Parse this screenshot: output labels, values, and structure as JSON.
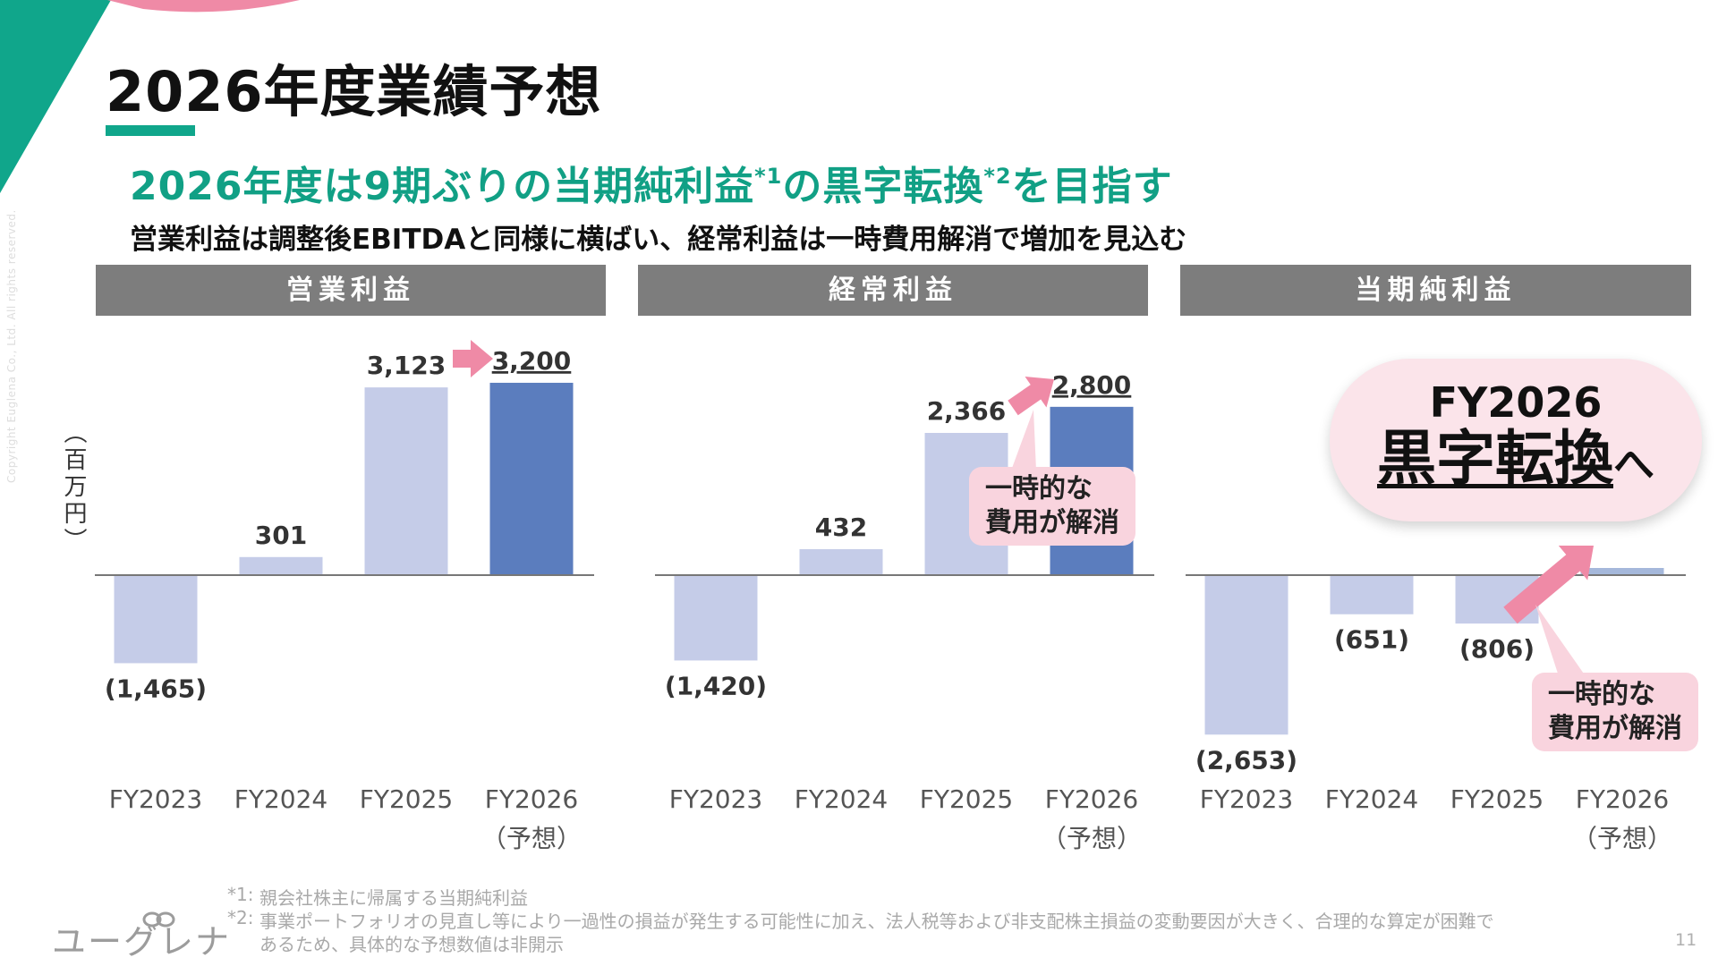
{
  "page": {
    "title": "2026年度業績予想",
    "headline_main": "2026年度は9期ぶりの当期純利益",
    "headline_sup1": "*1",
    "headline_mid": "の黒字転換",
    "headline_sup2": "*2",
    "headline_end": "を目指す",
    "subline": "営業利益は調整後EBITDAと同様に横ばい、経常利益は一時費用解消で増加を見込む",
    "y_unit": "（百万円）",
    "copyright": "Copyright Euglena Co., Ltd. All rights reserved.",
    "page_number": "11",
    "logo_text": "ユーグレナ"
  },
  "colors": {
    "accent_green": "#11a085",
    "bar_past": "#c5cce8",
    "bar_forecast": "#5b7dbe",
    "arrow_pink": "#ef8aa6",
    "bubble_pink": "#f9d4de",
    "header_gray": "#7d7d7d",
    "deco_pink": "#ef8aa6"
  },
  "annotations": {
    "one_time_cost_line1": "一時的な",
    "one_time_cost_line2": "費用が解消",
    "turnaround_line1": "FY2026",
    "turnaround_line2": "黒字転換",
    "turnaround_suffix": "へ"
  },
  "footnotes": [
    {
      "label": "*1:",
      "lines": [
        "親会社株主に帰属する当期純利益"
      ]
    },
    {
      "label": "*2:",
      "lines": [
        "事業ポートフォリオの見直し等により一過性の損益が発生する可能性に加え、法人税等および非支配株主損益の変動要因が大きく、合理的な算定が困難で",
        "あるため、具体的な予想数値は非開示"
      ]
    }
  ],
  "chart_data": [
    {
      "type": "bar",
      "title": "営業利益",
      "categories": [
        "FY2023",
        "FY2024",
        "FY2025",
        "FY2026"
      ],
      "category_sublabels": [
        "",
        "",
        "",
        "（予想）"
      ],
      "values": [
        -1465,
        301,
        3123,
        3200
      ],
      "labels": [
        "(1,465)",
        "301",
        "3,123",
        "3,200"
      ],
      "forecast_index": 3,
      "ylim": [
        -3000,
        3600
      ]
    },
    {
      "type": "bar",
      "title": "経常利益",
      "categories": [
        "FY2023",
        "FY2024",
        "FY2025",
        "FY2026"
      ],
      "category_sublabels": [
        "",
        "",
        "",
        "（予想）"
      ],
      "values": [
        -1420,
        432,
        2366,
        2800
      ],
      "labels": [
        "(1,420)",
        "432",
        "2,366",
        "2,800"
      ],
      "forecast_index": 3,
      "ylim": [
        -3000,
        3600
      ]
    },
    {
      "type": "bar",
      "title": "当期純利益",
      "categories": [
        "FY2023",
        "FY2024",
        "FY2025",
        "FY2026"
      ],
      "category_sublabels": [
        "",
        "",
        "",
        "（予想）"
      ],
      "values": [
        -2653,
        -651,
        -806,
        null
      ],
      "labels": [
        "(2,653)",
        "(651)",
        "(806)",
        ""
      ],
      "forecast_index": 3,
      "forecast_note": "not disclosed; shown as a slight positive",
      "ylim": [
        -3000,
        3600
      ]
    }
  ]
}
